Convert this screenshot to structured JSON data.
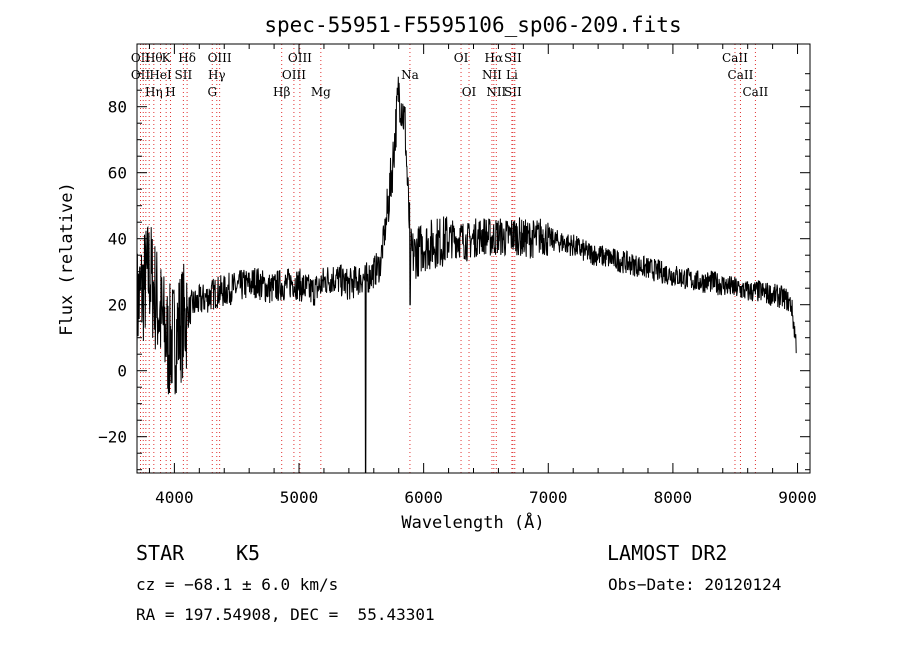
{
  "chart_data": {
    "type": "line",
    "title": "spec-55951-F5595106_sp06-209.fits",
    "xlabel": "Wavelength (Å)",
    "ylabel": "Flux (relative)",
    "xlim": [
      3700,
      9100
    ],
    "ylim": [
      -31,
      99
    ],
    "xticks": [
      4000,
      5000,
      6000,
      7000,
      8000,
      9000
    ],
    "yticks": [
      -20,
      0,
      20,
      40,
      60,
      80
    ],
    "x_tick_labels": [
      "4000",
      "5000",
      "6000",
      "7000",
      "8000",
      "9000"
    ],
    "y_tick_labels": [
      "−20",
      "0",
      "20",
      "40",
      "60",
      "80"
    ],
    "grid": false,
    "line_color": "#000000",
    "marker_color": "#e03030",
    "series": [
      {
        "x": [
          3700,
          3750,
          3800,
          3850,
          3900,
          3950,
          4000,
          4050,
          4100,
          4150,
          4200,
          4250,
          4300,
          4350,
          4400,
          4450,
          4500,
          4550,
          4600,
          4650,
          4700,
          4750,
          4800,
          4850,
          4900,
          4950,
          5000,
          5050,
          5100,
          5150,
          5200,
          5250,
          5300,
          5350,
          5400,
          5450,
          5500,
          5550,
          5600,
          5650,
          5700,
          5750,
          5800,
          5850,
          5880,
          5900,
          5950,
          6000,
          6050,
          6100,
          6150,
          6200,
          6250,
          6300,
          6350,
          6400,
          6450,
          6500,
          6550,
          6600,
          6650,
          6700,
          6750,
          6800,
          6850,
          6900,
          6950,
          7000,
          7100,
          7200,
          7300,
          7400,
          7500,
          7600,
          7700,
          7800,
          7900,
          8000,
          8100,
          8200,
          8300,
          8400,
          8500,
          8600,
          8700,
          8800,
          8900,
          8950,
          9000
        ],
        "y": [
          20,
          25,
          30,
          22,
          15,
          8,
          10,
          14,
          17,
          20,
          21,
          22,
          23,
          24,
          24,
          25,
          25,
          26,
          26,
          27,
          26,
          25,
          25,
          26,
          26,
          27,
          26,
          25,
          24,
          25,
          27,
          28,
          28,
          27,
          26,
          27,
          28,
          28,
          30,
          32,
          45,
          62,
          85,
          75,
          48,
          35,
          36,
          38,
          38,
          39,
          39,
          40,
          40,
          40,
          39,
          40,
          41,
          41,
          40,
          41,
          40,
          41,
          41,
          40,
          40,
          40,
          41,
          40,
          39,
          38,
          36,
          35,
          34,
          33,
          32,
          31,
          30,
          29,
          28,
          27,
          27,
          26,
          25,
          24,
          24,
          23,
          22,
          20,
          5
        ]
      }
    ],
    "line_markers": [
      {
        "x": 3728,
        "y1": "OII",
        "y2": "OII",
        "y3": ""
      },
      {
        "x": 3750,
        "y1": "",
        "y2": "",
        "y3": ""
      },
      {
        "x": 3771,
        "y1": "",
        "y2": "",
        "y3": ""
      },
      {
        "x": 3798,
        "y1": "",
        "y2": "",
        "y3": ""
      },
      {
        "x": 3835,
        "y1": "Hθ",
        "y2": "",
        "y3": "Hη"
      },
      {
        "x": 3889,
        "y1": "",
        "y2": "HeI",
        "y3": ""
      },
      {
        "x": 3934,
        "y1": "K",
        "y2": "",
        "y3": ""
      },
      {
        "x": 3969,
        "y1": "",
        "y2": "",
        "y3": "H"
      },
      {
        "x": 4072,
        "y1": "",
        "y2": "SII",
        "y3": ""
      },
      {
        "x": 4102,
        "y1": "Hδ",
        "y2": "",
        "y3": ""
      },
      {
        "x": 4304,
        "y1": "",
        "y2": "",
        "y3": "G"
      },
      {
        "x": 4340,
        "y1": "",
        "y2": "Hγ",
        "y3": ""
      },
      {
        "x": 4363,
        "y1": "OIII",
        "y2": "",
        "y3": ""
      },
      {
        "x": 4861,
        "y1": "",
        "y2": "",
        "y3": "Hβ"
      },
      {
        "x": 4959,
        "y1": "",
        "y2": "OIII",
        "y3": ""
      },
      {
        "x": 5007,
        "y1": "OIII",
        "y2": "",
        "y3": ""
      },
      {
        "x": 5175,
        "y1": "",
        "y2": "",
        "y3": "Mg"
      },
      {
        "x": 5890,
        "y1": "",
        "y2": "Na",
        "y3": ""
      },
      {
        "x": 6300,
        "y1": "OI",
        "y2": "",
        "y3": ""
      },
      {
        "x": 6364,
        "y1": "",
        "y2": "",
        "y3": "OI"
      },
      {
        "x": 6548,
        "y1": "",
        "y2": "NII",
        "y3": ""
      },
      {
        "x": 6563,
        "y1": "Hα",
        "y2": "",
        "y3": ""
      },
      {
        "x": 6583,
        "y1": "",
        "y2": "",
        "y3": "NII"
      },
      {
        "x": 6708,
        "y1": "",
        "y2": "Li",
        "y3": ""
      },
      {
        "x": 6716,
        "y1": "SII",
        "y2": "",
        "y3": "SII"
      },
      {
        "x": 6731,
        "y1": "",
        "y2": "",
        "y3": ""
      },
      {
        "x": 8498,
        "y1": "CaII",
        "y2": "",
        "y3": ""
      },
      {
        "x": 8542,
        "y1": "",
        "y2": "CaII",
        "y3": ""
      },
      {
        "x": 8662,
        "y1": "",
        "y2": "",
        "y3": "CaII"
      }
    ]
  },
  "info": {
    "class_label": "STAR",
    "subclass_label": "K5",
    "survey_label": "LAMOST DR2",
    "cz_line": "cz = −68.1 ± 6.0 km/s",
    "obsdate_line": "Obs−Date: 20120124",
    "radec_line": "RA = 197.54908, DEC =  55.43301"
  }
}
